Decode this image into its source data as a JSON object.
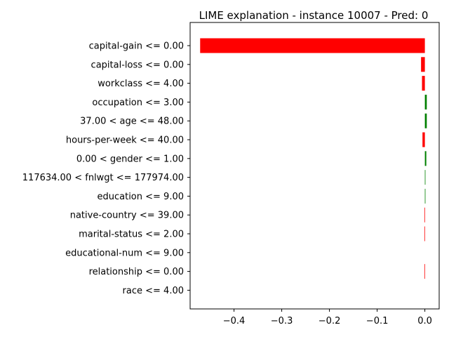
{
  "chart_data": {
    "type": "bar",
    "orientation": "horizontal",
    "title": "LIME explanation - instance 10007 - Pred: 0",
    "xlabel": "",
    "ylabel": "",
    "xlim": [
      -0.492,
      0.03
    ],
    "xticks": [
      -0.4,
      -0.3,
      -0.2,
      -0.1,
      0.0
    ],
    "xtick_labels": [
      "−0.4",
      "−0.3",
      "−0.2",
      "−0.1",
      "0.0"
    ],
    "grid": false,
    "colors": {
      "negative": "#ff0000",
      "positive": "#008000"
    },
    "categories": [
      "capital-gain <= 0.00",
      "capital-loss <= 0.00",
      "workclass <= 4.00",
      "occupation <= 3.00",
      "37.00 < age <= 48.00",
      "hours-per-week <= 40.00",
      "0.00 < gender <= 1.00",
      "117634.00 < fnlwgt <= 177974.00",
      "education <= 9.00",
      "native-country <= 39.00",
      "marital-status <= 2.00",
      "educational-num <= 9.00",
      "relationship <= 0.00",
      "race <= 4.00"
    ],
    "values": [
      -0.471,
      -0.008,
      -0.006,
      0.004,
      0.004,
      -0.005,
      0.003,
      0.001,
      0.001,
      -0.001,
      -0.001,
      0.0,
      -0.001,
      0.0
    ]
  }
}
